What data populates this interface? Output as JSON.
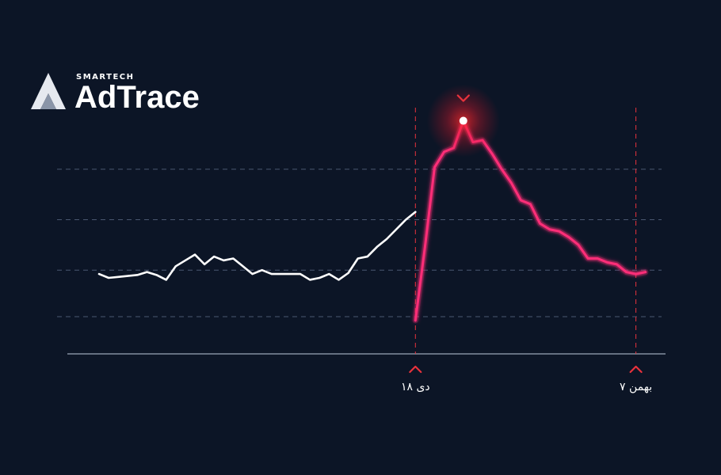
{
  "brand": {
    "small_text": "SMARTECH",
    "name": "AdTrace"
  },
  "colors": {
    "background": "#0c1526",
    "baseline_series": "#ffffff",
    "highlight_series": "#ff2d78",
    "marker": "#e8323c",
    "grid": "#4a5670"
  },
  "chart_data": {
    "type": "line",
    "title": "",
    "xlabel": "",
    "ylabel": "",
    "grid": true,
    "ylim": [
      0,
      100
    ],
    "markers": [
      {
        "label": "۱۸ دی",
        "x": 33
      },
      {
        "label": "۷ بهمن",
        "x": 56
      }
    ],
    "peak_x": 38,
    "series": [
      {
        "values": [
          [
            0,
            22
          ],
          [
            1,
            20
          ],
          [
            2,
            20.5
          ],
          [
            3,
            21
          ],
          [
            4,
            21.5
          ],
          [
            5,
            23
          ],
          [
            6,
            21.5
          ],
          [
            7,
            19
          ],
          [
            8,
            26
          ],
          [
            9,
            29
          ],
          [
            10,
            32
          ],
          [
            11,
            27
          ],
          [
            12,
            31
          ],
          [
            13,
            29
          ],
          [
            14,
            30
          ],
          [
            15,
            26
          ],
          [
            16,
            22
          ],
          [
            17,
            24
          ],
          [
            18,
            22
          ],
          [
            19,
            22
          ],
          [
            20,
            22
          ],
          [
            21,
            22
          ],
          [
            22,
            19
          ],
          [
            23,
            20
          ],
          [
            24,
            22
          ],
          [
            25,
            19
          ],
          [
            26,
            22.5
          ],
          [
            27,
            30
          ],
          [
            28,
            31
          ],
          [
            29,
            36
          ],
          [
            30,
            40
          ],
          [
            31,
            45
          ],
          [
            32,
            50
          ],
          [
            33,
            54
          ]
        ]
      },
      {
        "values": [
          [
            33,
            -2
          ],
          [
            34,
            36
          ],
          [
            35,
            77
          ],
          [
            36,
            85
          ],
          [
            37,
            87
          ],
          [
            38,
            101
          ],
          [
            39,
            90
          ],
          [
            40,
            91
          ],
          [
            41,
            84
          ],
          [
            42,
            76
          ],
          [
            43,
            69
          ],
          [
            44,
            60
          ],
          [
            45,
            58
          ],
          [
            46,
            48
          ],
          [
            47,
            45
          ],
          [
            48,
            44
          ],
          [
            49,
            41
          ],
          [
            50,
            37
          ],
          [
            51,
            30
          ],
          [
            52,
            30
          ],
          [
            53,
            28
          ],
          [
            54,
            27
          ],
          [
            55,
            23
          ],
          [
            56,
            22
          ],
          [
            57,
            23
          ]
        ]
      }
    ]
  }
}
